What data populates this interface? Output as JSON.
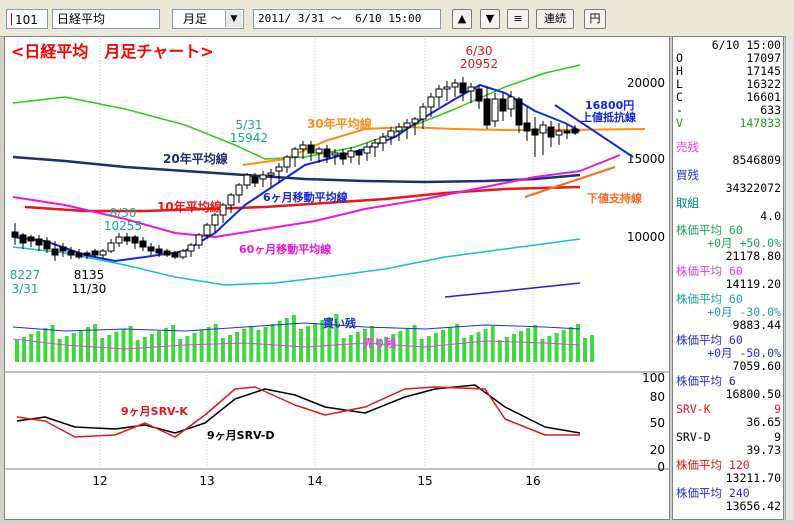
{
  "toolbar": {
    "code": "101",
    "name": "日経平均",
    "period": "月足",
    "dropdown_icon": "chevron-down-icon",
    "range": "2011/ 3/31 ～  6/10 15:00",
    "up_icon": "triangle-up-icon",
    "down_icon": "triangle-down-icon",
    "menu_icon": "menu-lines-icon",
    "btn_continuous": "連続",
    "btn_yen": "円"
  },
  "chart": {
    "title": "<日経平均　月足チャート>",
    "title_color": "#ff0000",
    "x_labels": [
      "12",
      "13",
      "14",
      "15",
      "16"
    ],
    "price_axis": [
      "20000",
      "15000",
      "10000"
    ],
    "volume_axis": [],
    "osc_axis": [
      "100",
      "80",
      "50",
      "20",
      "0"
    ],
    "price_labels": {
      "high": {
        "date": "6/30",
        "value": "20952"
      },
      "mid1": {
        "date": "5/31",
        "value": "15942"
      },
      "mid2": {
        "date": "8/30",
        "value": "10255"
      },
      "low1": {
        "value": "8227",
        "date": "3/31"
      },
      "low2": {
        "value": "8135",
        "date": "11/30"
      }
    },
    "annotations": {
      "ma30": "30年平均線",
      "ma20": "20年平均線",
      "ma10": "10年平均線",
      "ma6m": "6ヶ月移動平均線",
      "ma60m": "60ヶ月移動平均線",
      "resist_price": "16800円",
      "resist": "上値抵抗線",
      "support": "下値支持線",
      "buy": "買い残",
      "sell": "売り残",
      "srv_k": "9ヶ月SRV-K",
      "srv_d": "9ヶ月SRV-D"
    },
    "colors": {
      "ma30": "#ff8c1a",
      "ma20": "#1f2f6f",
      "ma10": "#e81818",
      "ma6m": "#1428d8",
      "ma60m": "#e819d8",
      "green_line": "#30c818",
      "teal_line": "#18c0c0",
      "candle_up": "#ffffff",
      "candle_down": "#000000",
      "volume": "#40d840"
    }
  },
  "side": {
    "datetime": "6/10 15:00",
    "ohlc": [
      {
        "label": "O",
        "value": "17097"
      },
      {
        "label": "H",
        "value": "17145"
      },
      {
        "label": "L",
        "value": "16322"
      },
      {
        "label": "C",
        "value": "16601"
      },
      {
        "label": "-",
        "value": "633"
      },
      {
        "label": "V",
        "value": "147833"
      }
    ],
    "sell_label": "売残",
    "sell_value": "8546809",
    "buy_label": "買残",
    "buy_value": "34322072",
    "torikumi_label": "取組",
    "torikumi_value": "4.0",
    "ind1_label": "株価平均  60",
    "ind1_sub": "+0月 +50.0%",
    "ind1_value": "21178.80",
    "ind2_label": "株価平均  60",
    "ind2_value": "14119.20",
    "ind3_label": "株価平均  60",
    "ind3_sub": "+0月 -30.0%",
    "ind3_value": "9883.44",
    "ind4_label": "株価平均  60",
    "ind4_sub": "+0月 -50.0%",
    "ind4_value": "7059.60",
    "ind5_label": "株価平均   6",
    "ind5_value": "16800.50",
    "srvk_label": "SRV-K",
    "srvk_num": "9",
    "srvk_value": "36.65",
    "srvd_label": "SRV-D",
    "srvd_num": "9",
    "srvd_value": "39.73",
    "ind6_label": "株価平均 120",
    "ind6_value": "13211.70",
    "ind7_label": "株価平均 240",
    "ind7_value": "13656.42"
  }
}
